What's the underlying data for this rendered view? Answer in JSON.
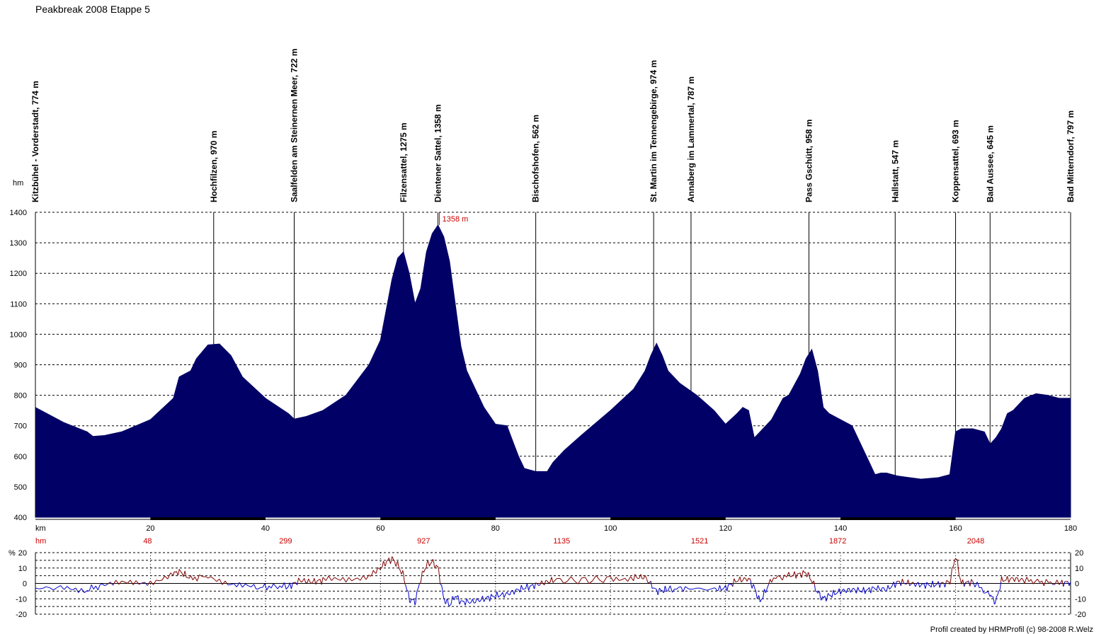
{
  "title": "Peakbreak 2008 Etappe 5",
  "credit": "Profil created by HRMProfil (c) 98-2008 R.Welz",
  "colors": {
    "profile_fill": "#000066",
    "peak_label": "#cc0000",
    "hm_row": "#cc0000",
    "gradient_up": "#800000",
    "gradient_down": "#0000cc"
  },
  "chart_data": [
    {
      "type": "area",
      "title": "Peakbreak 2008 Etappe 5",
      "xlabel": "km",
      "ylabel": "hm",
      "xlim": [
        0,
        180
      ],
      "ylim": [
        400,
        1400
      ],
      "x_ticks": [
        20,
        40,
        60,
        80,
        100,
        120,
        140,
        160,
        180
      ],
      "y_ticks": [
        400,
        500,
        600,
        700,
        800,
        900,
        1000,
        1100,
        1200,
        1300,
        1400
      ],
      "grid": true,
      "max_label": "1358 m",
      "max_point": {
        "km": 70.5,
        "elevation": 1358
      },
      "profile": {
        "km": [
          0,
          2,
          5,
          9,
          10,
          12,
          15,
          20,
          24,
          25,
          27,
          28,
          30,
          32,
          34,
          36,
          40,
          44,
          45,
          47,
          50,
          54,
          58,
          60,
          61,
          62,
          63,
          64,
          65,
          66,
          67,
          68,
          69,
          70,
          71,
          72,
          73,
          74,
          75,
          76,
          77,
          78,
          80,
          82,
          83,
          84,
          85,
          86,
          87,
          88,
          89,
          90,
          92,
          95,
          100,
          104,
          106,
          107,
          108,
          109,
          110,
          112,
          115,
          118,
          120,
          122,
          123,
          124,
          125,
          126,
          128,
          130,
          131,
          133,
          134,
          135,
          136,
          137,
          138,
          140,
          142,
          144,
          145,
          146,
          147,
          148,
          149,
          150,
          152,
          154,
          157,
          159,
          160,
          161,
          163,
          165,
          166,
          167,
          168,
          169,
          170,
          172,
          174,
          176,
          178,
          180
        ],
        "elevation": [
          760,
          740,
          710,
          680,
          665,
          668,
          680,
          720,
          790,
          860,
          880,
          920,
          965,
          968,
          930,
          860,
          790,
          740,
          722,
          730,
          750,
          800,
          900,
          980,
          1080,
          1180,
          1250,
          1270,
          1200,
          1100,
          1150,
          1270,
          1330,
          1358,
          1320,
          1240,
          1100,
          960,
          880,
          840,
          800,
          760,
          705,
          700,
          650,
          600,
          560,
          555,
          550,
          550,
          550,
          580,
          620,
          670,
          750,
          820,
          880,
          930,
          970,
          930,
          880,
          840,
          800,
          750,
          705,
          740,
          760,
          750,
          660,
          680,
          720,
          790,
          800,
          870,
          920,
          950,
          880,
          760,
          740,
          720,
          700,
          620,
          580,
          540,
          545,
          545,
          540,
          535,
          530,
          525,
          530,
          540,
          680,
          690,
          690,
          680,
          640,
          660,
          690,
          740,
          750,
          790,
          805,
          800,
          790,
          790
        ]
      },
      "waypoints": [
        {
          "km": 0,
          "label": "Kitzbühel - Vorderstadt, 774 m"
        },
        {
          "km": 31,
          "label": "Hochfilzen, 970 m"
        },
        {
          "km": 45,
          "label": "Saalfelden am Steinernen Meer, 722 m"
        },
        {
          "km": 64,
          "label": "Filzensattel, 1275 m"
        },
        {
          "km": 70,
          "label": "Dientener Sattel, 1358 m"
        },
        {
          "km": 87,
          "label": "Bischofshofen, 562 m"
        },
        {
          "km": 107.5,
          "label": "St. Martin im Tennengebirge, 974 m"
        },
        {
          "km": 114,
          "label": "Annaberg im Lammertal, 787 m"
        },
        {
          "km": 134.5,
          "label": "Pass Gschütt, 958 m"
        },
        {
          "km": 149.5,
          "label": "Hallstatt, 547 m"
        },
        {
          "km": 160,
          "label": "Koppensattel, 693 m"
        },
        {
          "km": 166,
          "label": "Bad Aussee, 645 m"
        },
        {
          "km": 180,
          "label": "Bad Mitterndorf, 797 m"
        }
      ],
      "hm_row": {
        "label": "hm",
        "values": [
          {
            "km": 20,
            "hm": "48"
          },
          {
            "km": 44,
            "hm": "299"
          },
          {
            "km": 68,
            "hm": "927"
          },
          {
            "km": 92,
            "hm": "1135"
          },
          {
            "km": 116,
            "hm": "1521"
          },
          {
            "km": 140,
            "hm": "1872"
          },
          {
            "km": 164,
            "hm": "2048"
          }
        ]
      }
    },
    {
      "type": "line",
      "ylabel": "%",
      "xlim": [
        0,
        180
      ],
      "ylim": [
        -20,
        20
      ],
      "y_ticks_left": [
        "20",
        "10",
        "0",
        "-10",
        "-20"
      ],
      "y_ticks_right": [
        "20",
        "10",
        "0",
        "-10",
        "-20"
      ],
      "grid": true,
      "series": [
        {
          "km": [
            0,
            5,
            9,
            12,
            16,
            20,
            24,
            25,
            27,
            30,
            34,
            38,
            41,
            44,
            46,
            48,
            50,
            54,
            58,
            60,
            61,
            62,
            63,
            64,
            65,
            66,
            67,
            68,
            69,
            70,
            71,
            72,
            73,
            74,
            76,
            78,
            80,
            82,
            84,
            86,
            88,
            90,
            95,
            100,
            104,
            106,
            108,
            110,
            113,
            118,
            120,
            122,
            124,
            125,
            126,
            128,
            131,
            133,
            134,
            135,
            136,
            137,
            138,
            140,
            142,
            144,
            146,
            148,
            150,
            152,
            154,
            156,
            158,
            159,
            160,
            161,
            163,
            166,
            167,
            168,
            170,
            172,
            175,
            178,
            180
          ],
          "grade": [
            -3,
            -3,
            -4,
            -1,
            0,
            1,
            6,
            8,
            3,
            5,
            0,
            -3,
            -2,
            -2,
            2,
            1,
            2,
            3,
            5,
            10,
            14,
            16,
            12,
            5,
            -10,
            -12,
            3,
            12,
            14,
            10,
            -10,
            -14,
            -8,
            -12,
            -12,
            -10,
            -8,
            -7,
            -4,
            -2,
            0,
            2,
            2,
            3,
            4,
            4,
            -5,
            -4,
            -3,
            -4,
            -3,
            2,
            3,
            -3,
            -12,
            3,
            5,
            6,
            7,
            2,
            -6,
            -10,
            -8,
            -5,
            -4,
            -5,
            -3,
            -4,
            1,
            0,
            -1,
            -1,
            0,
            1,
            18,
            0,
            1,
            -8,
            -12,
            2,
            3,
            2,
            1,
            0,
            1
          ]
        }
      ]
    }
  ],
  "axis_labels": {
    "x_unit": "km",
    "y_unit": "hm",
    "hm_row_label": "hm",
    "grad_unit": "%"
  }
}
